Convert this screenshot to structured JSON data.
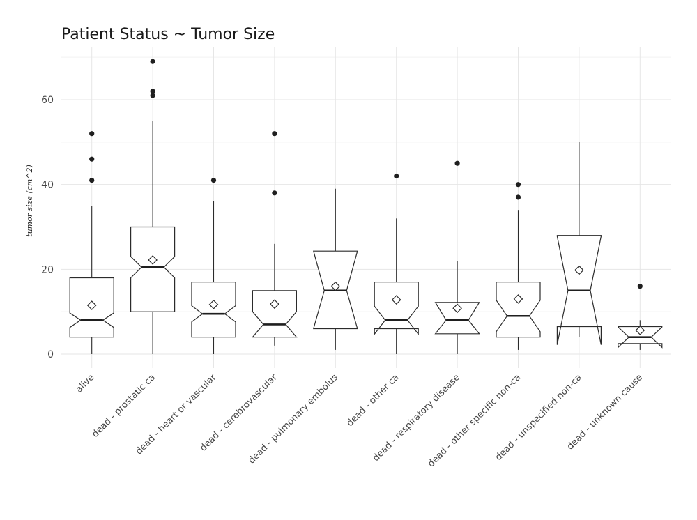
{
  "chart_data": {
    "type": "boxplot",
    "title": "Patient Status ~ Tumor Size",
    "xlabel": "",
    "ylabel": "tumor size (cm^2)",
    "ylim": [
      -2.5,
      72
    ],
    "y_ticks": [
      0,
      20,
      40,
      60
    ],
    "grid": true,
    "notched": true,
    "categories": [
      "alive",
      "dead - prostatic ca",
      "dead - heart or vascular",
      "dead - cerebrovascular",
      "dead - pulmonary embolus",
      "dead - other ca",
      "dead - respiratory disease",
      "dead - other specific non-ca",
      "dead - unspecified non-ca",
      "dead - unknown cause"
    ],
    "boxes": [
      {
        "min": 0,
        "q1": 4,
        "median": 8,
        "q3": 18,
        "max": 35,
        "notch_low": 6.3,
        "notch_high": 9.7,
        "mean": 11.5,
        "outliers": [
          41,
          46,
          52
        ]
      },
      {
        "min": 0,
        "q1": 10,
        "median": 20.5,
        "q3": 30,
        "max": 55,
        "notch_low": 18,
        "notch_high": 23,
        "mean": 22.2,
        "outliers": [
          61,
          62,
          69
        ]
      },
      {
        "min": 0,
        "q1": 4,
        "median": 9.5,
        "q3": 17,
        "max": 36,
        "notch_low": 7.6,
        "notch_high": 11.4,
        "mean": 11.7,
        "outliers": [
          41
        ]
      },
      {
        "min": 2,
        "q1": 4,
        "median": 7,
        "q3": 15,
        "max": 26,
        "notch_low": 4,
        "notch_high": 10,
        "mean": 11.8,
        "outliers": [
          38,
          52
        ]
      },
      {
        "min": 1,
        "q1": 6,
        "median": 15,
        "q3": 24.3,
        "max": 39,
        "notch_low": 6,
        "notch_high": 24.3,
        "mean": 16,
        "outliers": []
      },
      {
        "min": 0,
        "q1": 6,
        "median": 8,
        "q3": 17,
        "max": 32,
        "notch_low": 4.7,
        "notch_high": 11.3,
        "mean": 12.8,
        "outliers": [
          42
        ]
      },
      {
        "min": 0,
        "q1": 4.8,
        "median": 8,
        "q3": 12.2,
        "max": 22,
        "notch_low": 4.8,
        "notch_high": 12.2,
        "mean": 10.8,
        "outliers": [
          45
        ]
      },
      {
        "min": 1,
        "q1": 4,
        "median": 9,
        "q3": 17,
        "max": 34,
        "notch_low": 5.3,
        "notch_high": 12.7,
        "mean": 13,
        "outliers": [
          37,
          40
        ]
      },
      {
        "min": 4,
        "q1": 6.5,
        "median": 15,
        "q3": 28,
        "max": 50,
        "notch_low": 2.2,
        "notch_high": 27.8,
        "mean": 19.8,
        "outliers": []
      },
      {
        "min": 1,
        "q1": 2.5,
        "median": 4,
        "q3": 6.5,
        "max": 8,
        "notch_low": 1.6,
        "notch_high": 6.4,
        "mean": 5.6,
        "outliers": [
          16
        ]
      }
    ]
  }
}
